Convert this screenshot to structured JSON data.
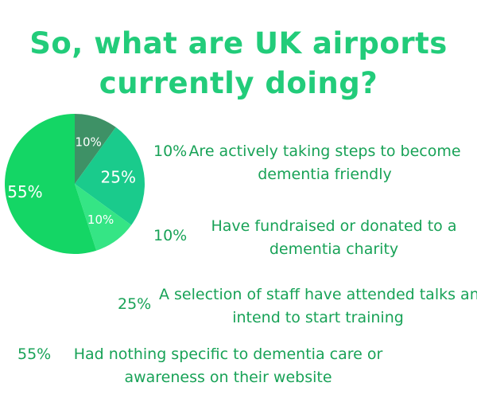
{
  "title": {
    "line1": "So, what are UK airports",
    "line2": "currently doing?"
  },
  "chart_data": {
    "type": "pie",
    "slices": [
      {
        "label": "10%",
        "value": 10,
        "color": "#3e9166"
      },
      {
        "label": "25%",
        "value": 25,
        "color": "#1acb8c"
      },
      {
        "label": "10%",
        "value": 10,
        "color": "#35e585"
      },
      {
        "label": "55%",
        "value": 55,
        "color": "#14d665"
      }
    ]
  },
  "legend": [
    {
      "percent": "10%",
      "line1": "Are actively taking steps to become",
      "line2": "dementia friendly"
    },
    {
      "percent": "10%",
      "line1": "Have fundraised or donated to a",
      "line2": "dementia charity"
    },
    {
      "percent": "25%",
      "line1": "A selection of staff have attended talks and",
      "line2": "intend to start training"
    },
    {
      "percent": "55%",
      "line1": "Had nothing specific to dementia care or",
      "line2": "awareness on their website"
    }
  ]
}
